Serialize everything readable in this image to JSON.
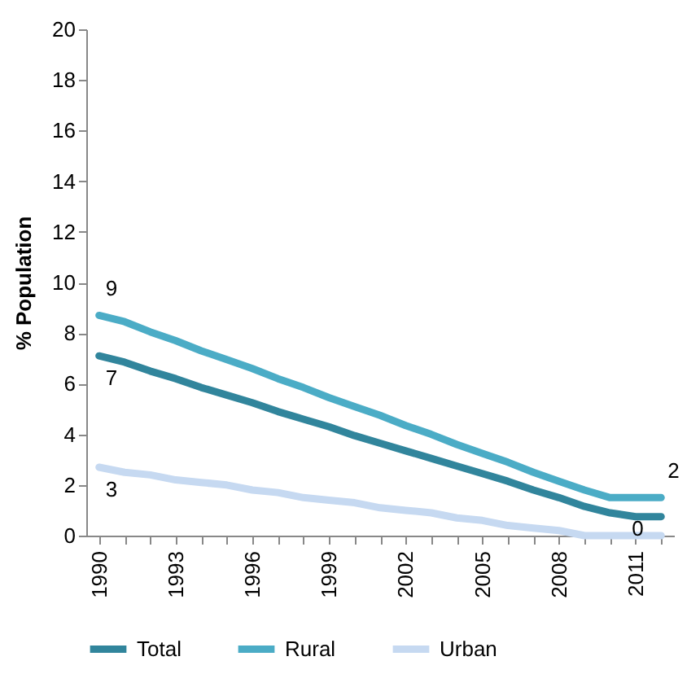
{
  "chart_data": {
    "type": "line",
    "ylabel": "% Population",
    "categories": [
      "1990",
      null,
      null,
      "1993",
      null,
      null,
      "1996",
      null,
      null,
      "1999",
      null,
      null,
      "2002",
      null,
      null,
      "2005",
      null,
      null,
      "2008",
      null,
      null,
      "2011",
      null
    ],
    "series": [
      {
        "name": "Total",
        "color": "#31859c",
        "values": [
          7.1,
          6.85,
          6.5,
          6.2,
          5.85,
          5.55,
          5.25,
          4.9,
          4.6,
          4.3,
          3.95,
          3.65,
          3.35,
          3.05,
          2.75,
          2.45,
          2.15,
          1.8,
          1.5,
          1.15,
          0.9,
          0.75,
          0.75
        ],
        "value_labels": [
          "7",
          null,
          null,
          null,
          null,
          null,
          null,
          null,
          null,
          null,
          null,
          null,
          null,
          null,
          null,
          null,
          null,
          null,
          null,
          null,
          null,
          null,
          null
        ]
      },
      {
        "name": "Rural",
        "color": "#4bacc6",
        "values": [
          8.7,
          8.45,
          8.05,
          7.7,
          7.3,
          6.95,
          6.6,
          6.2,
          5.85,
          5.45,
          5.1,
          4.75,
          4.35,
          4.0,
          3.6,
          3.25,
          2.9,
          2.5,
          2.15,
          1.8,
          1.5,
          1.5,
          1.5
        ],
        "value_labels": [
          "9",
          null,
          null,
          null,
          null,
          null,
          null,
          null,
          null,
          null,
          null,
          null,
          null,
          null,
          null,
          null,
          null,
          null,
          null,
          null,
          null,
          null,
          "2"
        ]
      },
      {
        "name": "Urban",
        "color": "#c6d9f1",
        "values": [
          2.7,
          2.5,
          2.4,
          2.2,
          2.1,
          2.0,
          1.8,
          1.7,
          1.5,
          1.4,
          1.3,
          1.1,
          1.0,
          0.9,
          0.7,
          0.6,
          0.4,
          0.3,
          0.2,
          0.0,
          0.0,
          0.0,
          0.0
        ],
        "value_labels": [
          "3",
          null,
          null,
          null,
          null,
          null,
          null,
          null,
          null,
          null,
          null,
          null,
          null,
          null,
          null,
          null,
          null,
          null,
          null,
          null,
          null,
          null,
          "0"
        ]
      }
    ],
    "ylim": [
      0,
      20
    ],
    "yticks": [
      0,
      2,
      4,
      6,
      8,
      10,
      12,
      14,
      16,
      18,
      20
    ],
    "grid": false,
    "legend": "bottom",
    "marker": "none",
    "line_style": "solid"
  }
}
